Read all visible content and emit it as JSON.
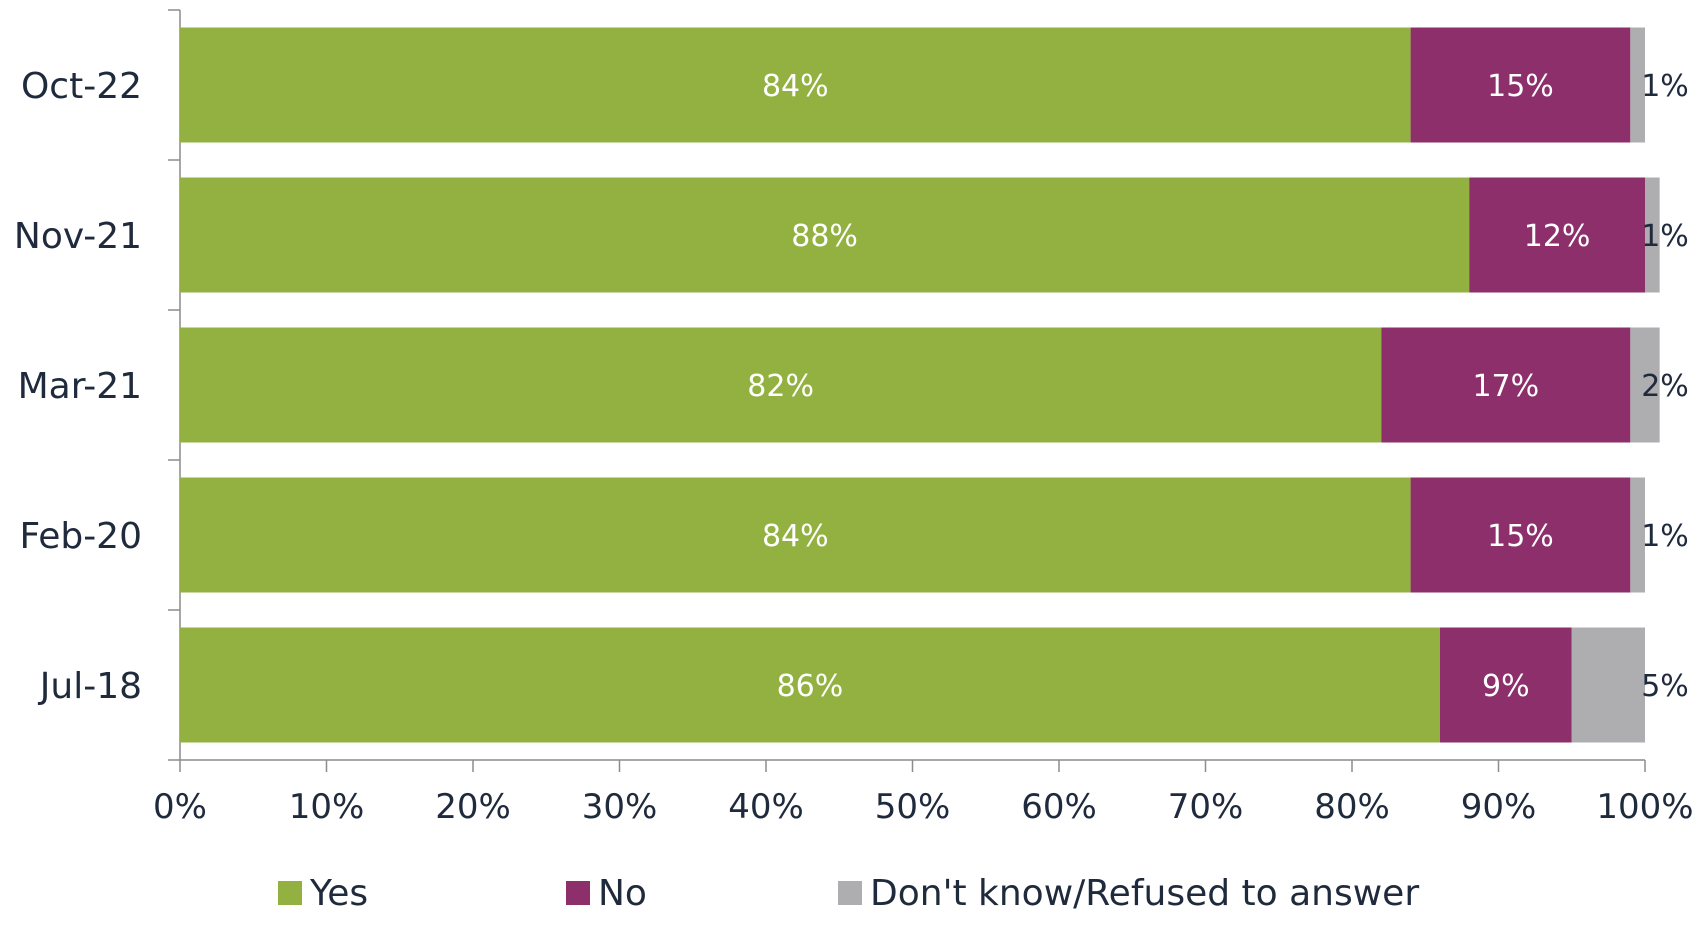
{
  "chart_data": {
    "type": "bar",
    "orientation": "horizontal",
    "stacked": true,
    "categories": [
      "Oct-22",
      "Nov-21",
      "Mar-21",
      "Feb-20",
      "Jul-18"
    ],
    "series": [
      {
        "name": "Yes",
        "values": [
          84,
          88,
          82,
          84,
          86
        ],
        "color": "#93b140",
        "labels": [
          "84%",
          "88%",
          "82%",
          "84%",
          "86%"
        ]
      },
      {
        "name": "No",
        "values": [
          15,
          12,
          17,
          15,
          9
        ],
        "color": "#8c2f6b",
        "labels": [
          "15%",
          "12%",
          "17%",
          "15%",
          "9%"
        ]
      },
      {
        "name": "Don't know/Refused to answer",
        "values": [
          1,
          1,
          2,
          1,
          5
        ],
        "color": "#aeaeb0",
        "labels": [
          "1%",
          "1%",
          "2%",
          "1%",
          "5%"
        ]
      }
    ],
    "xlim": [
      0,
      100
    ],
    "x_ticks": [
      "0%",
      "10%",
      "20%",
      "30%",
      "40%",
      "50%",
      "60%",
      "70%",
      "80%",
      "90%",
      "100%"
    ],
    "grid": false,
    "legend_position": "bottom"
  }
}
